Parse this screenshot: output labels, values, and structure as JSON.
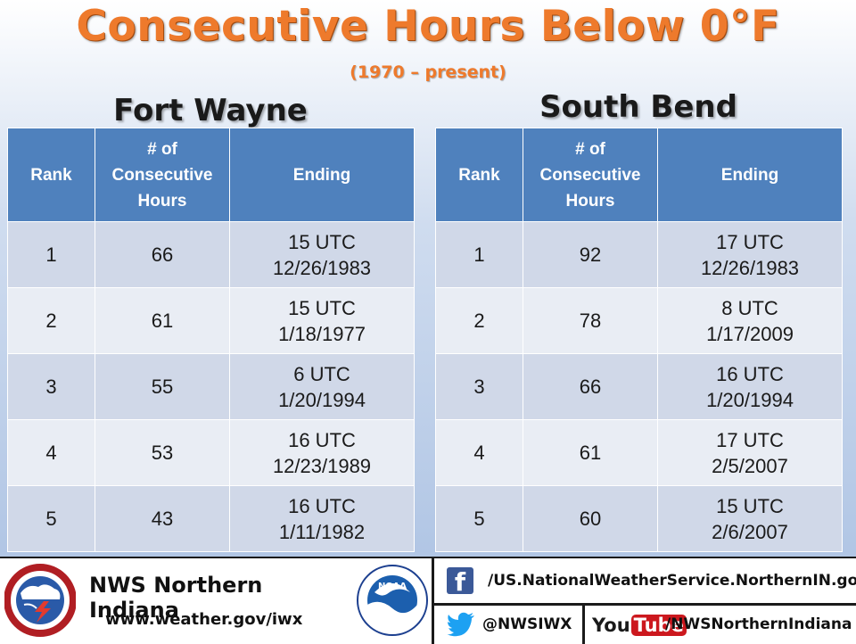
{
  "title": "Consecutive Hours Below 0°F",
  "subtitle": "(1970 – present)",
  "headers": {
    "rank": "Rank",
    "hours": [
      "# of",
      "Consecutive",
      "Hours"
    ],
    "ending": "Ending"
  },
  "fort_wayne": {
    "name": "Fort Wayne",
    "rows": [
      {
        "rank": "1",
        "hours": "66",
        "time": "15 UTC",
        "date": "12/26/1983"
      },
      {
        "rank": "2",
        "hours": "61",
        "time": "15 UTC",
        "date": "1/18/1977"
      },
      {
        "rank": "3",
        "hours": "55",
        "time": "6 UTC",
        "date": "1/20/1994"
      },
      {
        "rank": "4",
        "hours": "53",
        "time": "16 UTC",
        "date": "12/23/1989"
      },
      {
        "rank": "5",
        "hours": "43",
        "time": "16 UTC",
        "date": "1/11/1982"
      }
    ]
  },
  "south_bend": {
    "name": "South Bend",
    "rows": [
      {
        "rank": "1",
        "hours": "92",
        "time": "17 UTC",
        "date": "12/26/1983"
      },
      {
        "rank": "2",
        "hours": "78",
        "time": "8 UTC",
        "date": "1/17/2009"
      },
      {
        "rank": "3",
        "hours": "66",
        "time": "16 UTC",
        "date": "1/20/1994"
      },
      {
        "rank": "4",
        "hours": "61",
        "time": "17 UTC",
        "date": "2/5/2007"
      },
      {
        "rank": "5",
        "hours": "60",
        "time": "15 UTC",
        "date": "2/6/2007"
      }
    ]
  },
  "footer": {
    "office": "NWS Northern Indiana",
    "website": "www.weather.gov/iwx",
    "facebook": "/US.NationalWeatherService.NorthernIN.gov",
    "twitter": "@NWSIWX",
    "youtube_logo_you": "You",
    "youtube_logo_tube": "Tube",
    "youtube": "/NWSNorthernIndiana",
    "nws_logo_text": "NATIONAL WEATHER SERVICE",
    "noaa_logo_text": "NOAA"
  },
  "colors": {
    "title": "#ee7a2c",
    "header_bg": "#4f81bd",
    "row_dark": "#d0d8e8",
    "row_light": "#e9edf4"
  }
}
